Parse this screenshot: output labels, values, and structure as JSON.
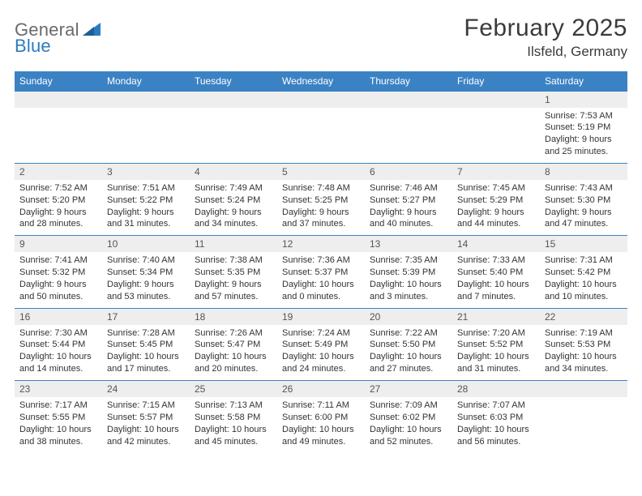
{
  "branding": {
    "logo_word1": "General",
    "logo_word2": "Blue",
    "logo_text_color": "#6a6a6a",
    "logo_accent_color": "#2b7bbf"
  },
  "header": {
    "title": "February 2025",
    "location": "Ilsfeld, Germany",
    "title_fontsize": 30,
    "location_fontsize": 17,
    "text_color": "#3b3b3b"
  },
  "calendar": {
    "header_bg": "#3b82c4",
    "header_fg": "#ffffff",
    "daynum_bg": "#eeeeee",
    "border_color": "#3b82c4",
    "body_text_color": "#333333",
    "day_fontsize": 11,
    "columns": [
      "Sunday",
      "Monday",
      "Tuesday",
      "Wednesday",
      "Thursday",
      "Friday",
      "Saturday"
    ],
    "weeks": [
      [
        {
          "day": "",
          "sunrise": "",
          "sunset": "",
          "daylight": ""
        },
        {
          "day": "",
          "sunrise": "",
          "sunset": "",
          "daylight": ""
        },
        {
          "day": "",
          "sunrise": "",
          "sunset": "",
          "daylight": ""
        },
        {
          "day": "",
          "sunrise": "",
          "sunset": "",
          "daylight": ""
        },
        {
          "day": "",
          "sunrise": "",
          "sunset": "",
          "daylight": ""
        },
        {
          "day": "",
          "sunrise": "",
          "sunset": "",
          "daylight": ""
        },
        {
          "day": "1",
          "sunrise": "Sunrise: 7:53 AM",
          "sunset": "Sunset: 5:19 PM",
          "daylight": "Daylight: 9 hours and 25 minutes."
        }
      ],
      [
        {
          "day": "2",
          "sunrise": "Sunrise: 7:52 AM",
          "sunset": "Sunset: 5:20 PM",
          "daylight": "Daylight: 9 hours and 28 minutes."
        },
        {
          "day": "3",
          "sunrise": "Sunrise: 7:51 AM",
          "sunset": "Sunset: 5:22 PM",
          "daylight": "Daylight: 9 hours and 31 minutes."
        },
        {
          "day": "4",
          "sunrise": "Sunrise: 7:49 AM",
          "sunset": "Sunset: 5:24 PM",
          "daylight": "Daylight: 9 hours and 34 minutes."
        },
        {
          "day": "5",
          "sunrise": "Sunrise: 7:48 AM",
          "sunset": "Sunset: 5:25 PM",
          "daylight": "Daylight: 9 hours and 37 minutes."
        },
        {
          "day": "6",
          "sunrise": "Sunrise: 7:46 AM",
          "sunset": "Sunset: 5:27 PM",
          "daylight": "Daylight: 9 hours and 40 minutes."
        },
        {
          "day": "7",
          "sunrise": "Sunrise: 7:45 AM",
          "sunset": "Sunset: 5:29 PM",
          "daylight": "Daylight: 9 hours and 44 minutes."
        },
        {
          "day": "8",
          "sunrise": "Sunrise: 7:43 AM",
          "sunset": "Sunset: 5:30 PM",
          "daylight": "Daylight: 9 hours and 47 minutes."
        }
      ],
      [
        {
          "day": "9",
          "sunrise": "Sunrise: 7:41 AM",
          "sunset": "Sunset: 5:32 PM",
          "daylight": "Daylight: 9 hours and 50 minutes."
        },
        {
          "day": "10",
          "sunrise": "Sunrise: 7:40 AM",
          "sunset": "Sunset: 5:34 PM",
          "daylight": "Daylight: 9 hours and 53 minutes."
        },
        {
          "day": "11",
          "sunrise": "Sunrise: 7:38 AM",
          "sunset": "Sunset: 5:35 PM",
          "daylight": "Daylight: 9 hours and 57 minutes."
        },
        {
          "day": "12",
          "sunrise": "Sunrise: 7:36 AM",
          "sunset": "Sunset: 5:37 PM",
          "daylight": "Daylight: 10 hours and 0 minutes."
        },
        {
          "day": "13",
          "sunrise": "Sunrise: 7:35 AM",
          "sunset": "Sunset: 5:39 PM",
          "daylight": "Daylight: 10 hours and 3 minutes."
        },
        {
          "day": "14",
          "sunrise": "Sunrise: 7:33 AM",
          "sunset": "Sunset: 5:40 PM",
          "daylight": "Daylight: 10 hours and 7 minutes."
        },
        {
          "day": "15",
          "sunrise": "Sunrise: 7:31 AM",
          "sunset": "Sunset: 5:42 PM",
          "daylight": "Daylight: 10 hours and 10 minutes."
        }
      ],
      [
        {
          "day": "16",
          "sunrise": "Sunrise: 7:30 AM",
          "sunset": "Sunset: 5:44 PM",
          "daylight": "Daylight: 10 hours and 14 minutes."
        },
        {
          "day": "17",
          "sunrise": "Sunrise: 7:28 AM",
          "sunset": "Sunset: 5:45 PM",
          "daylight": "Daylight: 10 hours and 17 minutes."
        },
        {
          "day": "18",
          "sunrise": "Sunrise: 7:26 AM",
          "sunset": "Sunset: 5:47 PM",
          "daylight": "Daylight: 10 hours and 20 minutes."
        },
        {
          "day": "19",
          "sunrise": "Sunrise: 7:24 AM",
          "sunset": "Sunset: 5:49 PM",
          "daylight": "Daylight: 10 hours and 24 minutes."
        },
        {
          "day": "20",
          "sunrise": "Sunrise: 7:22 AM",
          "sunset": "Sunset: 5:50 PM",
          "daylight": "Daylight: 10 hours and 27 minutes."
        },
        {
          "day": "21",
          "sunrise": "Sunrise: 7:20 AM",
          "sunset": "Sunset: 5:52 PM",
          "daylight": "Daylight: 10 hours and 31 minutes."
        },
        {
          "day": "22",
          "sunrise": "Sunrise: 7:19 AM",
          "sunset": "Sunset: 5:53 PM",
          "daylight": "Daylight: 10 hours and 34 minutes."
        }
      ],
      [
        {
          "day": "23",
          "sunrise": "Sunrise: 7:17 AM",
          "sunset": "Sunset: 5:55 PM",
          "daylight": "Daylight: 10 hours and 38 minutes."
        },
        {
          "day": "24",
          "sunrise": "Sunrise: 7:15 AM",
          "sunset": "Sunset: 5:57 PM",
          "daylight": "Daylight: 10 hours and 42 minutes."
        },
        {
          "day": "25",
          "sunrise": "Sunrise: 7:13 AM",
          "sunset": "Sunset: 5:58 PM",
          "daylight": "Daylight: 10 hours and 45 minutes."
        },
        {
          "day": "26",
          "sunrise": "Sunrise: 7:11 AM",
          "sunset": "Sunset: 6:00 PM",
          "daylight": "Daylight: 10 hours and 49 minutes."
        },
        {
          "day": "27",
          "sunrise": "Sunrise: 7:09 AM",
          "sunset": "Sunset: 6:02 PM",
          "daylight": "Daylight: 10 hours and 52 minutes."
        },
        {
          "day": "28",
          "sunrise": "Sunrise: 7:07 AM",
          "sunset": "Sunset: 6:03 PM",
          "daylight": "Daylight: 10 hours and 56 minutes."
        },
        {
          "day": "",
          "sunrise": "",
          "sunset": "",
          "daylight": ""
        }
      ]
    ]
  }
}
